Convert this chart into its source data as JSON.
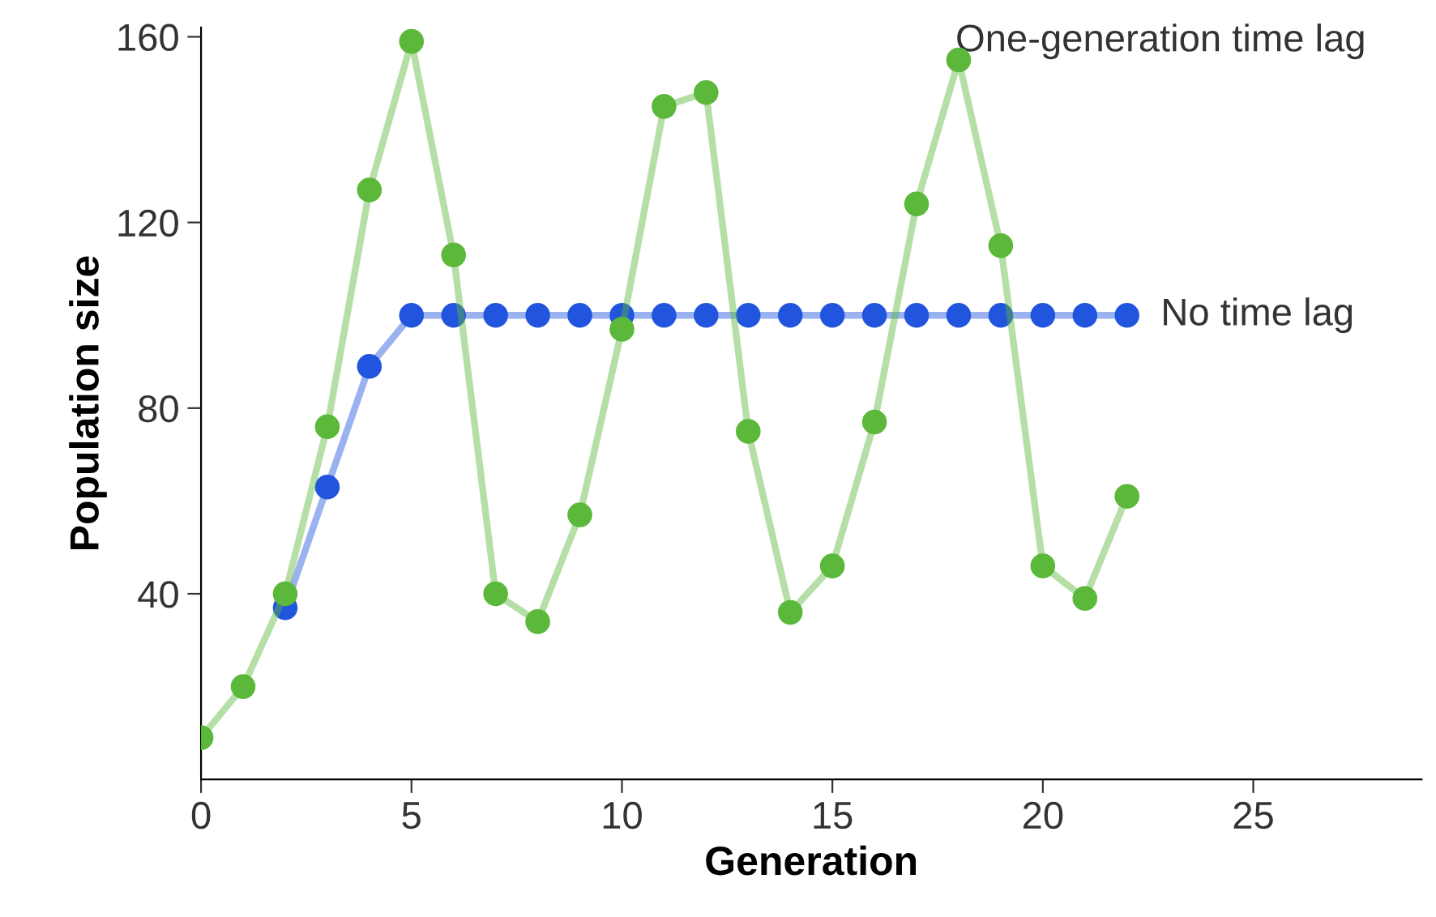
{
  "chart_data": {
    "type": "line",
    "xlabel": "Generation",
    "ylabel": "Population size",
    "xlim": [
      0,
      29
    ],
    "ylim": [
      0,
      162
    ],
    "xticks": [
      0,
      5,
      10,
      15,
      20,
      25
    ],
    "yticks": [
      40,
      80,
      120,
      160
    ],
    "grid": false,
    "legend": false,
    "marker": "circle",
    "line_style": "solid",
    "series": [
      {
        "name": "No time lag",
        "color": "#2255dd",
        "x": [
          2,
          3,
          4,
          5,
          6,
          7,
          8,
          9,
          10,
          11,
          12,
          13,
          14,
          15,
          16,
          17,
          18,
          19,
          20,
          21,
          22
        ],
        "values": [
          37,
          63,
          89,
          100,
          100,
          100,
          100,
          100,
          100,
          100,
          100,
          100,
          100,
          100,
          100,
          100,
          100,
          100,
          100,
          100,
          100
        ]
      },
      {
        "name": "One-generation time lag",
        "color": "#5cb83a",
        "x": [
          0,
          1,
          2,
          3,
          4,
          5,
          6,
          7,
          8,
          9,
          10,
          11,
          12,
          13,
          14,
          15,
          16,
          17,
          18,
          19,
          20,
          21,
          22
        ],
        "values": [
          9,
          20,
          40,
          76,
          127,
          159,
          113,
          40,
          34,
          57,
          97,
          145,
          148,
          75,
          36,
          46,
          77,
          124,
          155,
          115,
          46,
          39,
          61
        ]
      }
    ]
  }
}
